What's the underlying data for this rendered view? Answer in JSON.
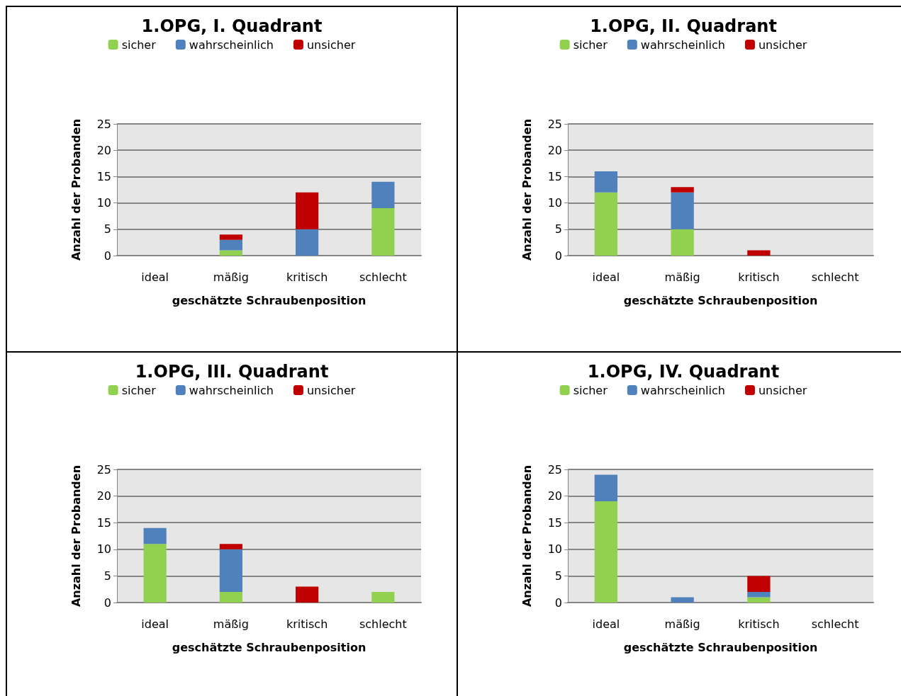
{
  "chart_data": [
    {
      "type": "bar",
      "title": "1.OPG, I. Quadrant",
      "xlabel": "geschätzte Schraubenposition",
      "ylabel": "Anzahl der Probanden",
      "categories": [
        "ideal",
        "mäßig",
        "kritisch",
        "schlecht"
      ],
      "stacked": true,
      "ylim": [
        0,
        25
      ],
      "yticks": [
        0,
        5,
        10,
        15,
        20,
        25
      ],
      "grid": "y",
      "legend": "top",
      "series": [
        {
          "name": "sicher",
          "color": "#92d050",
          "values": [
            0,
            1,
            0,
            9
          ]
        },
        {
          "name": "wahrscheinlich",
          "color": "#4f81bd",
          "values": [
            0,
            2,
            5,
            5
          ]
        },
        {
          "name": "unsicher",
          "color": "#c00000",
          "values": [
            0,
            1,
            7,
            0
          ]
        }
      ]
    },
    {
      "type": "bar",
      "title": "1.OPG, II. Quadrant",
      "xlabel": "geschätzte Schraubenposition",
      "ylabel": "Anzahl der Probanden",
      "categories": [
        "ideal",
        "mäßig",
        "kritisch",
        "schlecht"
      ],
      "stacked": true,
      "ylim": [
        0,
        25
      ],
      "yticks": [
        0,
        5,
        10,
        15,
        20,
        25
      ],
      "grid": "y",
      "legend": "top",
      "series": [
        {
          "name": "sicher",
          "color": "#92d050",
          "values": [
            12,
            5,
            0,
            0
          ]
        },
        {
          "name": "wahrscheinlich",
          "color": "#4f81bd",
          "values": [
            4,
            7,
            0,
            0
          ]
        },
        {
          "name": "unsicher",
          "color": "#c00000",
          "values": [
            0,
            1,
            1,
            0
          ]
        }
      ]
    },
    {
      "type": "bar",
      "title": "1.OPG, III. Quadrant",
      "xlabel": "geschätzte Schraubenposition",
      "ylabel": "Anzahl der Probanden",
      "categories": [
        "ideal",
        "mäßig",
        "kritisch",
        "schlecht"
      ],
      "stacked": true,
      "ylim": [
        0,
        25
      ],
      "yticks": [
        0,
        5,
        10,
        15,
        20,
        25
      ],
      "grid": "y",
      "legend": "top",
      "series": [
        {
          "name": "sicher",
          "color": "#92d050",
          "values": [
            11,
            2,
            0,
            2
          ]
        },
        {
          "name": "wahrscheinlich",
          "color": "#4f81bd",
          "values": [
            3,
            8,
            0,
            0
          ]
        },
        {
          "name": "unsicher",
          "color": "#c00000",
          "values": [
            0,
            1,
            3,
            0
          ]
        }
      ]
    },
    {
      "type": "bar",
      "title": "1.OPG, IV. Quadrant",
      "xlabel": "geschätzte Schraubenposition",
      "ylabel": "Anzahl der Probanden",
      "categories": [
        "ideal",
        "mäßig",
        "kritisch",
        "schlecht"
      ],
      "stacked": true,
      "ylim": [
        0,
        25
      ],
      "yticks": [
        0,
        5,
        10,
        15,
        20,
        25
      ],
      "grid": "y",
      "legend": "top",
      "series": [
        {
          "name": "sicher",
          "color": "#92d050",
          "values": [
            19,
            0,
            1,
            0
          ]
        },
        {
          "name": "wahrscheinlich",
          "color": "#4f81bd",
          "values": [
            5,
            1,
            1,
            0
          ]
        },
        {
          "name": "unsicher",
          "color": "#c00000",
          "values": [
            0,
            0,
            3,
            0
          ]
        }
      ]
    }
  ]
}
